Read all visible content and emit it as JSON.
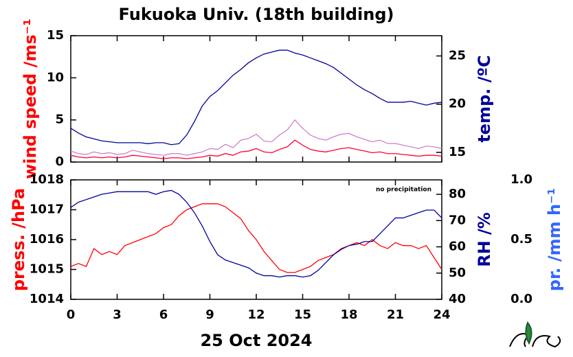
{
  "chart_data": [
    {
      "type": "line",
      "title": "Fukuoka Univ. (18th building)",
      "ylabel": "wind speed /ms⁻¹",
      "y2label": "temp. /ºC",
      "x": [
        0,
        0.5,
        1,
        1.5,
        2,
        2.5,
        3,
        3.5,
        4,
        4.5,
        5,
        5.5,
        6,
        6.5,
        7,
        7.5,
        8,
        8.5,
        9,
        9.5,
        10,
        10.5,
        11,
        11.5,
        12,
        12.5,
        13,
        13.5,
        14,
        14.5,
        15,
        15.5,
        16,
        16.5,
        17,
        17.5,
        18,
        18.5,
        19,
        19.5,
        20,
        20.5,
        21,
        21.5,
        22,
        22.5,
        23,
        23.5,
        24
      ],
      "xlim": [
        0,
        24
      ],
      "ylim": [
        0,
        15
      ],
      "yticks": [
        0,
        5,
        10,
        15
      ],
      "y2lim": [
        14,
        27.1
      ],
      "y2ticks": [
        15,
        20,
        25
      ],
      "ylabel_color": "#ff0000",
      "y2label_color": "#000099",
      "series": [
        {
          "color": "#cc77cc",
          "values": [
            1.3,
            1.0,
            0.9,
            1.2,
            1.0,
            1.1,
            0.9,
            1.0,
            1.4,
            1.2,
            1.0,
            0.9,
            0.8,
            1.0,
            1.0,
            0.8,
            1.0,
            1.2,
            1.6,
            1.5,
            2.1,
            1.7,
            2.6,
            2.8,
            3.3,
            2.5,
            2.4,
            3.2,
            3.8,
            5.0,
            4.0,
            3.2,
            2.8,
            2.6,
            3.0,
            3.3,
            3.4,
            3.0,
            2.7,
            2.4,
            2.6,
            2.2,
            2.2,
            2.0,
            1.8,
            1.6,
            1.9,
            1.8,
            1.6
          ]
        },
        {
          "color": "#ff0033",
          "values": [
            0.8,
            0.6,
            0.5,
            0.6,
            0.5,
            0.6,
            0.5,
            0.6,
            0.8,
            0.7,
            0.6,
            0.5,
            0.4,
            0.5,
            0.5,
            0.4,
            0.5,
            0.6,
            0.8,
            0.7,
            1.0,
            0.8,
            1.2,
            1.3,
            1.6,
            1.2,
            1.1,
            1.5,
            1.8,
            2.6,
            2.0,
            1.5,
            1.3,
            1.2,
            1.4,
            1.6,
            1.7,
            1.5,
            1.3,
            1.1,
            1.2,
            1.0,
            1.0,
            0.9,
            0.8,
            0.7,
            0.8,
            0.8,
            0.7
          ]
        },
        {
          "color": "#000099",
          "axis": "y2",
          "values": [
            17.5,
            17,
            16.6,
            16.4,
            16.2,
            16.1,
            16,
            16,
            16,
            16,
            15.9,
            16,
            16,
            15.8,
            15.9,
            16.8,
            18.2,
            19.8,
            20.8,
            21.4,
            22.2,
            23.0,
            23.6,
            24.3,
            24.8,
            25.2,
            25.4,
            25.6,
            25.6,
            25.3,
            25.1,
            24.8,
            24.5,
            24.2,
            23.8,
            23.2,
            22.6,
            22.0,
            21.5,
            21.1,
            20.6,
            20.2,
            20.2,
            20.2,
            20.3,
            20.1,
            19.9,
            20.1,
            20.2
          ]
        }
      ]
    },
    {
      "type": "line",
      "xlabel": "25 Oct 2024",
      "ylabel": "press. /hPa",
      "y2label": "RH /%",
      "y3label": "pr. /mm h⁻¹",
      "annotation": "no precipitation",
      "x": [
        0,
        0.5,
        1,
        1.5,
        2,
        2.5,
        3,
        3.5,
        4,
        4.5,
        5,
        5.5,
        6,
        6.5,
        7,
        7.5,
        8,
        8.5,
        9,
        9.5,
        10,
        10.5,
        11,
        11.5,
        12,
        12.5,
        13,
        13.5,
        14,
        14.5,
        15,
        15.5,
        16,
        16.5,
        17,
        17.5,
        18,
        18.5,
        19,
        19.5,
        20,
        20.5,
        21,
        21.5,
        22,
        22.5,
        23,
        23.5,
        24
      ],
      "xlim": [
        0,
        24
      ],
      "xticks": [
        0,
        3,
        6,
        9,
        12,
        15,
        18,
        21,
        24
      ],
      "ylim": [
        1014,
        1018
      ],
      "yticks": [
        1014,
        1015,
        1016,
        1017,
        1018
      ],
      "y2lim": [
        40,
        85.5
      ],
      "y2ticks": [
        40,
        50,
        60,
        70,
        80
      ],
      "y3lim": [
        0,
        1
      ],
      "y3ticks": [
        {
          "value": 0,
          "label": "0.0"
        },
        {
          "value": 0.5,
          "label": "0.5"
        },
        {
          "value": 1,
          "label": "1.0"
        }
      ],
      "ylabel_color": "#ff0000",
      "y2label_color": "#000099",
      "y3label_color": "#3366ff",
      "series": [
        {
          "color": "#ff0000",
          "values": [
            1015.1,
            1015.2,
            1015.1,
            1015.7,
            1015.5,
            1015.6,
            1015.5,
            1015.8,
            1015.9,
            1016.0,
            1016.1,
            1016.2,
            1016.4,
            1016.5,
            1016.8,
            1017.0,
            1017.1,
            1017.2,
            1017.2,
            1017.2,
            1017.1,
            1016.9,
            1016.7,
            1016.3,
            1016.0,
            1015.6,
            1015.3,
            1015.0,
            1014.9,
            1014.9,
            1015.0,
            1015.1,
            1015.3,
            1015.4,
            1015.5,
            1015.7,
            1015.8,
            1015.9,
            1015.8,
            1016.0,
            1015.8,
            1015.7,
            1015.9,
            1015.8,
            1015.8,
            1015.7,
            1015.8,
            1015.4,
            1015.0
          ]
        },
        {
          "color": "#000099",
          "axis": "y2",
          "values": [
            75,
            77,
            78,
            79,
            80,
            80.5,
            81,
            81,
            81,
            81,
            81,
            80,
            81,
            81.5,
            80,
            77,
            73,
            68,
            62,
            57,
            55,
            54,
            53,
            52,
            50,
            49,
            49,
            48.5,
            49,
            49,
            48.5,
            49,
            51,
            54,
            57,
            59,
            60.5,
            61,
            62,
            62,
            65,
            68,
            71,
            71,
            72,
            73,
            74,
            74,
            71
          ]
        }
      ]
    }
  ]
}
